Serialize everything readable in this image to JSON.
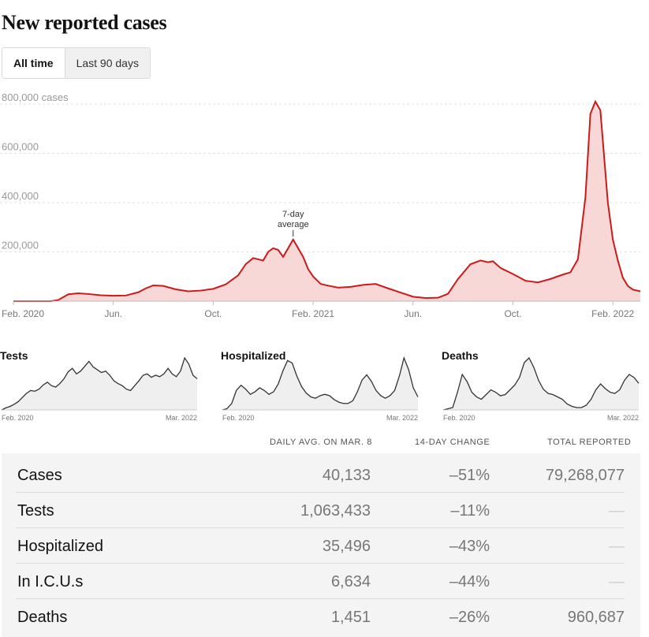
{
  "header": {
    "title": "New reported cases"
  },
  "toggle": {
    "all_time": "All time",
    "last_90": "Last 90 days"
  },
  "main_chart": {
    "annotation": [
      "7-day",
      "average"
    ]
  },
  "chart_data": [
    {
      "type": "area",
      "title": "",
      "ylabel": "cases",
      "ylim": [
        0,
        800000
      ],
      "y_ticks": [
        "800,000 cases",
        "600,000",
        "400,000",
        "200,000"
      ],
      "y_tick_values": [
        800000,
        600000,
        400000,
        200000
      ],
      "x_ticks": [
        "Feb. 2020",
        "Jun.",
        "Oct.",
        "Feb. 2021",
        "Jun.",
        "Oct.",
        "Feb. 2022"
      ],
      "x_tick_months": [
        0,
        4,
        8,
        12,
        16,
        20,
        24
      ],
      "series": [
        {
          "color": "#cc1a1a",
          "fill": "#f8d7d7",
          "x_month": [
            0,
            1.5,
            1.8,
            2.2,
            2.6,
            3,
            3.5,
            4,
            4.5,
            5,
            5.3,
            5.6,
            6,
            6.5,
            7,
            7.5,
            8,
            8.5,
            9,
            9.3,
            9.6,
            10,
            10.2,
            10.4,
            10.6,
            10.8,
            11,
            11.2,
            11.4,
            11.6,
            11.8,
            12,
            12.3,
            12.6,
            13,
            13.5,
            14,
            14.5,
            15,
            15.5,
            16,
            16.5,
            17,
            17.4,
            17.8,
            18.3,
            18.7,
            19,
            19.2,
            19.5,
            20,
            20.5,
            21,
            21.5,
            22,
            22.3,
            22.6,
            22.9,
            23.1,
            23.3,
            23.5,
            23.6,
            23.8,
            24,
            24.2,
            24.4,
            24.6,
            24.8,
            25.1
          ],
          "values": [
            0,
            0,
            5000,
            28000,
            32000,
            29000,
            24000,
            22000,
            23000,
            36000,
            52000,
            64000,
            62000,
            48000,
            40000,
            43000,
            50000,
            68000,
            105000,
            150000,
            175000,
            165000,
            200000,
            215000,
            208000,
            180000,
            215000,
            250000,
            215000,
            180000,
            130000,
            100000,
            70000,
            63000,
            55000,
            58000,
            66000,
            70000,
            52000,
            35000,
            18000,
            13000,
            14000,
            30000,
            90000,
            150000,
            165000,
            158000,
            162000,
            135000,
            110000,
            83000,
            76000,
            90000,
            108000,
            117000,
            170000,
            420000,
            760000,
            810000,
            775000,
            650000,
            400000,
            250000,
            165000,
            95000,
            62000,
            47000,
            40000
          ]
        }
      ]
    },
    {
      "type": "line",
      "title": "Tests",
      "x_ticks": [
        "Feb. 2020",
        "Mar. 2022"
      ],
      "series": [
        {
          "color": "#333333",
          "values": [
            0,
            3,
            5,
            8,
            12,
            18,
            24,
            28,
            27,
            30,
            36,
            40,
            35,
            33,
            38,
            45,
            55,
            60,
            52,
            56,
            63,
            70,
            62,
            58,
            54,
            56,
            50,
            42,
            38,
            35,
            30,
            28,
            35,
            42,
            50,
            52,
            47,
            50,
            48,
            52,
            60,
            52,
            48,
            56,
            75,
            66,
            50,
            45
          ]
        }
      ]
    },
    {
      "type": "line",
      "title": "Hospitalized",
      "x_ticks": [
        "Feb. 2020",
        "Mar. 2022"
      ],
      "series": [
        {
          "color": "#333333",
          "values": [
            0,
            2,
            10,
            30,
            38,
            32,
            24,
            28,
            34,
            30,
            24,
            28,
            40,
            60,
            76,
            72,
            52,
            36,
            26,
            20,
            18,
            22,
            24,
            22,
            16,
            12,
            10,
            10,
            14,
            28,
            46,
            54,
            44,
            30,
            22,
            18,
            22,
            30,
            52,
            80,
            62,
            34,
            20
          ]
        }
      ]
    },
    {
      "type": "line",
      "title": "Deaths",
      "x_ticks": [
        "Feb. 2020",
        "Mar. 2022"
      ],
      "series": [
        {
          "color": "#333333",
          "values": [
            0,
            2,
            4,
            30,
            60,
            48,
            30,
            22,
            18,
            26,
            34,
            30,
            24,
            26,
            34,
            42,
            55,
            80,
            88,
            72,
            50,
            35,
            28,
            26,
            22,
            18,
            10,
            6,
            4,
            4,
            8,
            18,
            34,
            44,
            36,
            30,
            28,
            34,
            50,
            60,
            55,
            45
          ]
        }
      ]
    }
  ],
  "table": {
    "headers": [
      "DAILY AVG. ON MAR. 8",
      "14-DAY CHANGE",
      "TOTAL REPORTED"
    ],
    "rows": [
      {
        "label": "Cases",
        "daily": "40,133",
        "change": "–51%",
        "total": "79,268,077"
      },
      {
        "label": "Tests",
        "daily": "1,063,433",
        "change": "–11%",
        "total": "—"
      },
      {
        "label": "Hospitalized",
        "daily": "35,496",
        "change": "–43%",
        "total": "—"
      },
      {
        "label": "In I.C.U.s",
        "daily": "6,634",
        "change": "–44%",
        "total": "—"
      },
      {
        "label": "Deaths",
        "daily": "1,451",
        "change": "–26%",
        "total": "960,687"
      }
    ]
  }
}
